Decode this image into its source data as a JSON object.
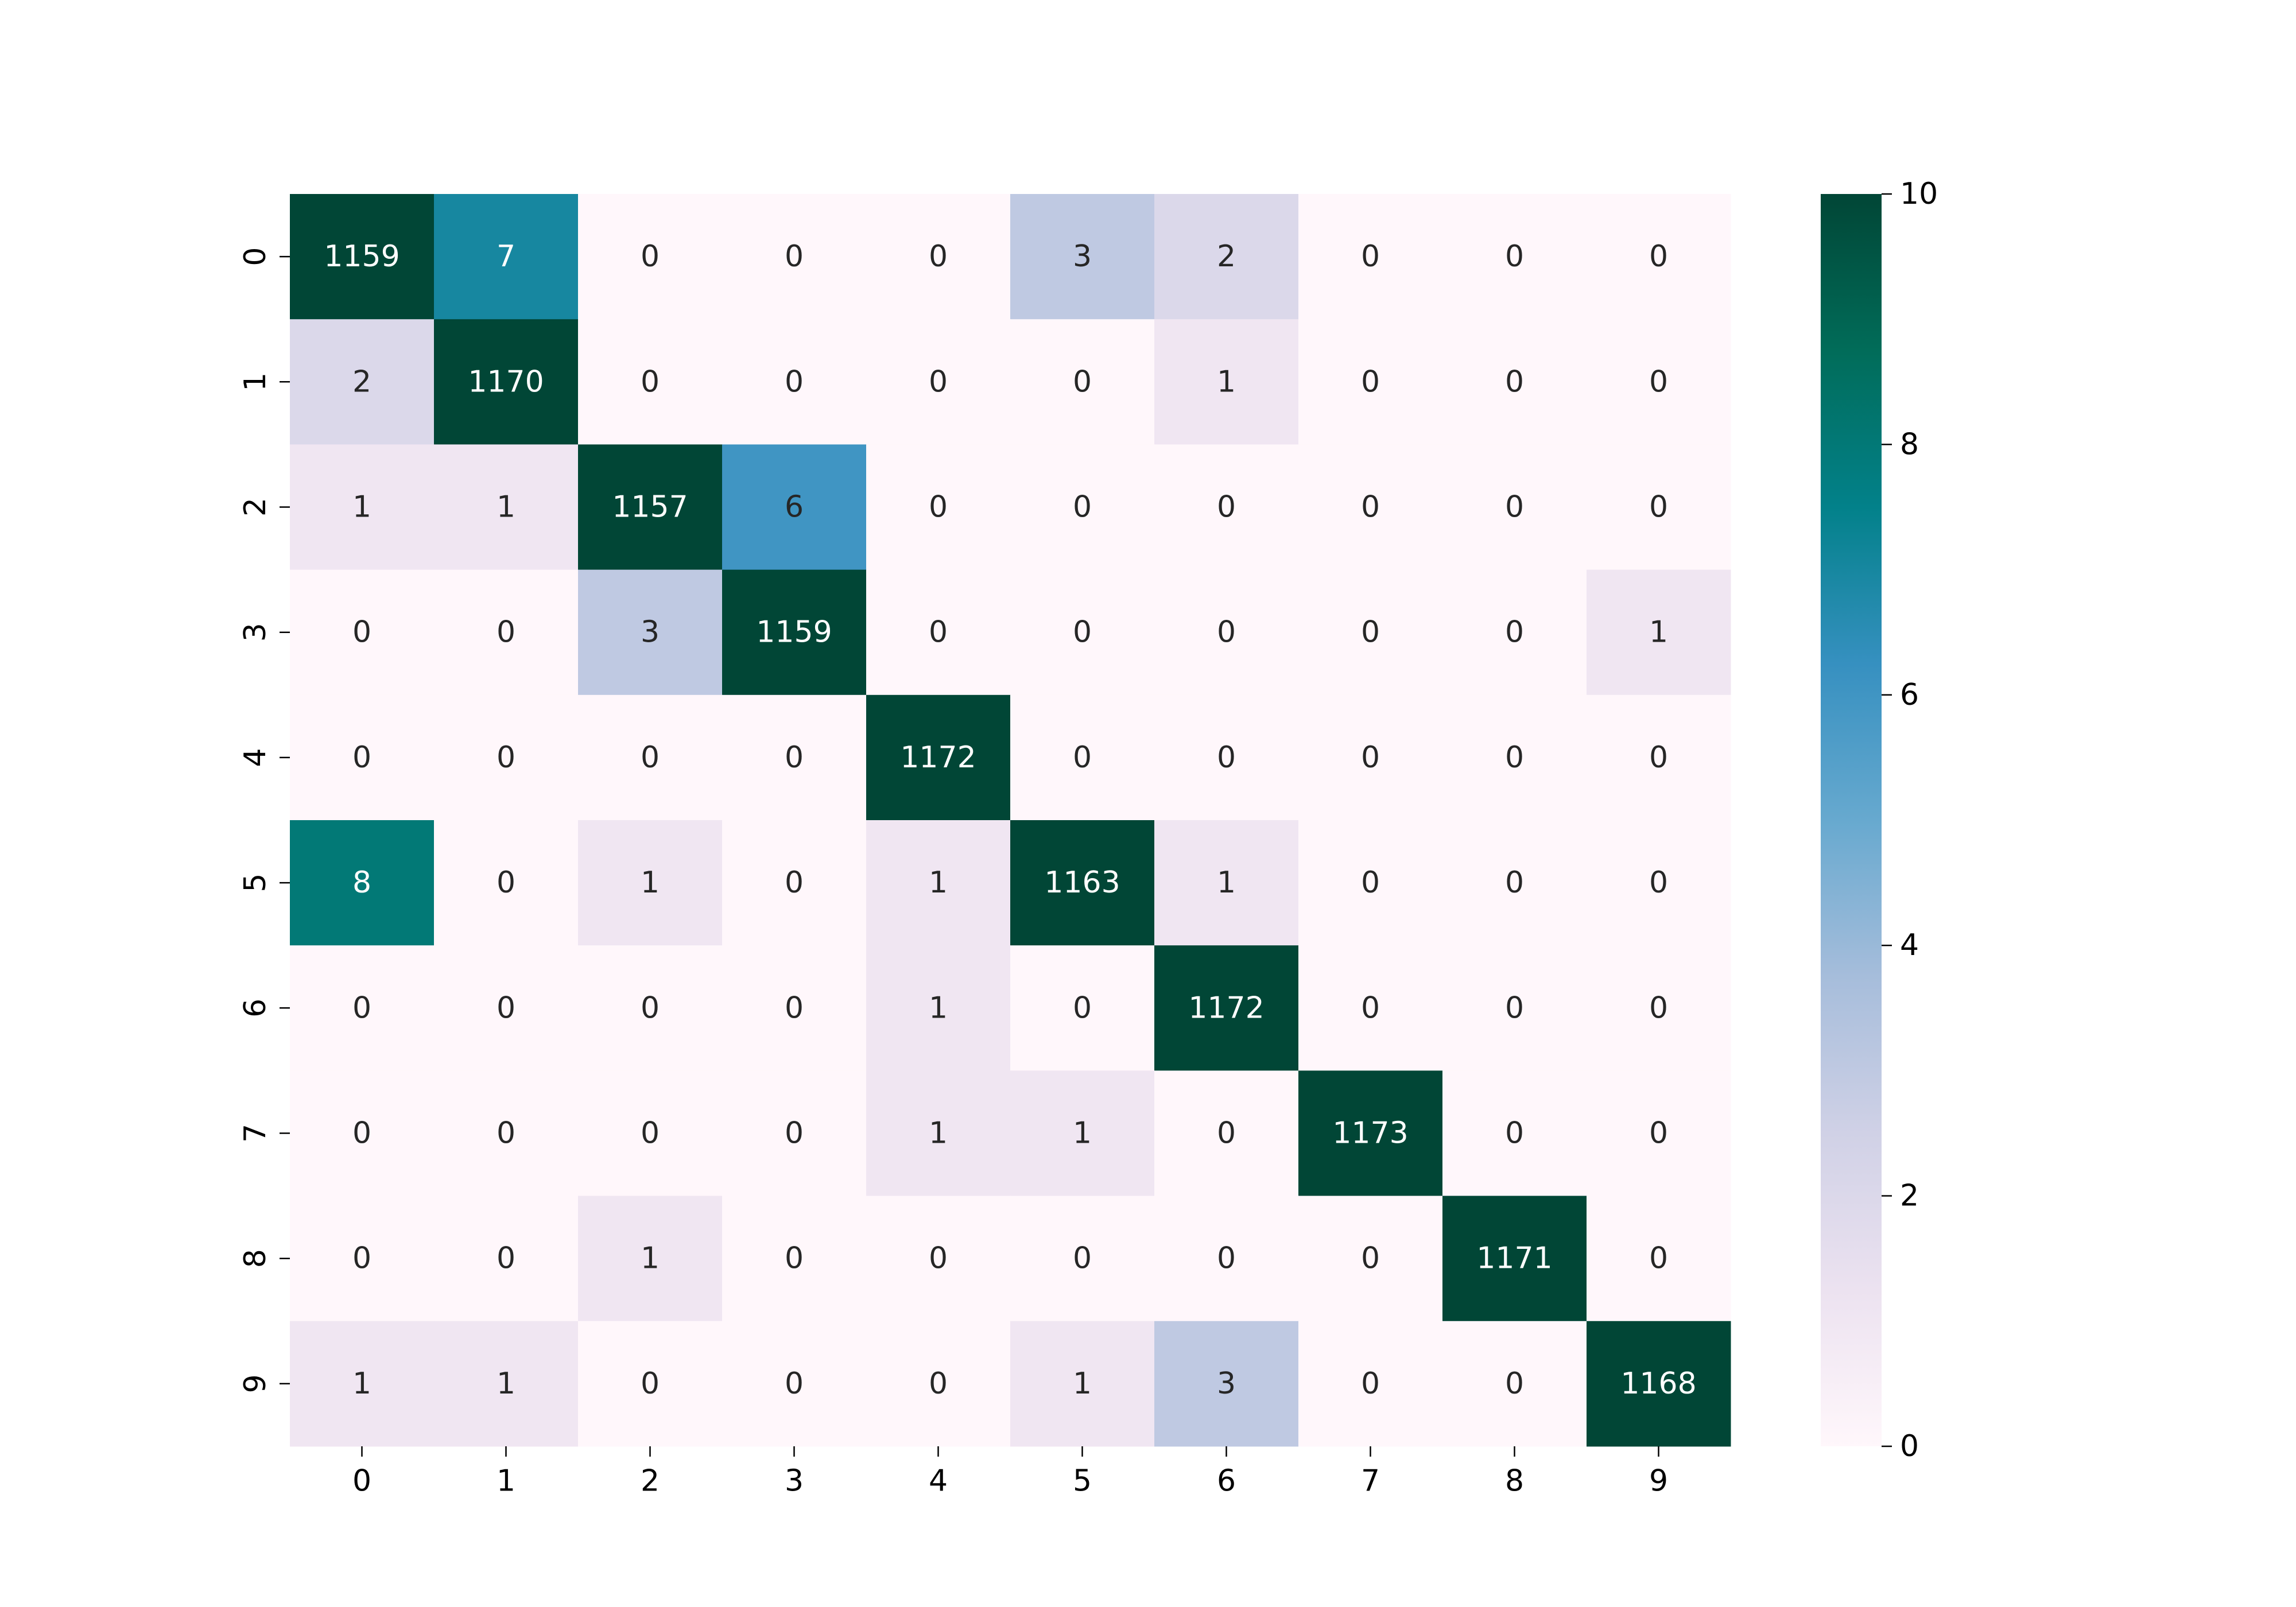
{
  "chart_data": {
    "type": "heatmap",
    "title": "",
    "xlabel": "",
    "ylabel": "",
    "x_categories": [
      "0",
      "1",
      "2",
      "3",
      "4",
      "5",
      "6",
      "7",
      "8",
      "9"
    ],
    "y_categories": [
      "0",
      "1",
      "2",
      "3",
      "4",
      "5",
      "6",
      "7",
      "8",
      "9"
    ],
    "values": [
      [
        1159,
        7,
        0,
        0,
        0,
        3,
        2,
        0,
        0,
        0
      ],
      [
        2,
        1170,
        0,
        0,
        0,
        0,
        1,
        0,
        0,
        0
      ],
      [
        1,
        1,
        1157,
        6,
        0,
        0,
        0,
        0,
        0,
        0
      ],
      [
        0,
        0,
        3,
        1159,
        0,
        0,
        0,
        0,
        0,
        1
      ],
      [
        0,
        0,
        0,
        0,
        1172,
        0,
        0,
        0,
        0,
        0
      ],
      [
        8,
        0,
        1,
        0,
        1,
        1163,
        1,
        0,
        0,
        0
      ],
      [
        0,
        0,
        0,
        0,
        1,
        0,
        1172,
        0,
        0,
        0
      ],
      [
        0,
        0,
        0,
        0,
        1,
        1,
        0,
        1173,
        0,
        0
      ],
      [
        0,
        0,
        1,
        0,
        0,
        0,
        0,
        0,
        1171,
        0
      ],
      [
        1,
        1,
        0,
        0,
        0,
        1,
        3,
        0,
        0,
        1168
      ]
    ],
    "colorbar": {
      "range": [
        0,
        10
      ],
      "ticks": [
        "0",
        "2",
        "4",
        "6",
        "8",
        "10"
      ],
      "colormap": "PuBuGn",
      "position": "right"
    },
    "grid": false
  }
}
